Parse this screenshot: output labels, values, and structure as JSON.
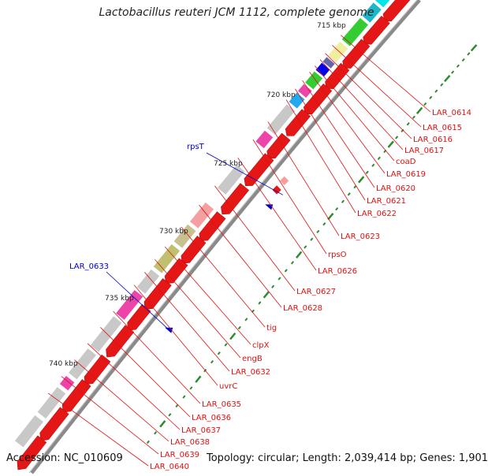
{
  "title": "Lactobacillus reuteri JCM 1112, complete genome",
  "footer": {
    "accession": "Accession: NC_010609",
    "summary": "Topology: circular; Length: 2,039,414 bp; Genes: 1,901"
  },
  "colors": {
    "backbone": "#7a7a7a",
    "cds_forward": "#e51616",
    "scale_tick": "#2e8b2e",
    "label_red": "#e01010",
    "label_blue": "#0000cc"
  },
  "scale_labels": [
    "715 kbp",
    "720 kbp",
    "725 kbp",
    "730 kbp",
    "735 kbp",
    "740 kbp"
  ],
  "gene_labels": [
    "LAR_0614",
    "LAR_0615",
    "LAR_0616",
    "LAR_0617",
    "coaD",
    "LAR_0619",
    "LAR_0620",
    "LAR_0621",
    "LAR_0622",
    "LAR_0623",
    "rpsO",
    "LAR_0626",
    "LAR_0627",
    "LAR_0628",
    "tig",
    "clpX",
    "engB",
    "LAR_0632",
    "uvrC",
    "LAR_0635",
    "LAR_0636",
    "LAR_0637",
    "LAR_0638",
    "LAR_0639",
    "LAR_0640"
  ],
  "reverse_labels": [
    "rpsT",
    "LAR_0633"
  ]
}
